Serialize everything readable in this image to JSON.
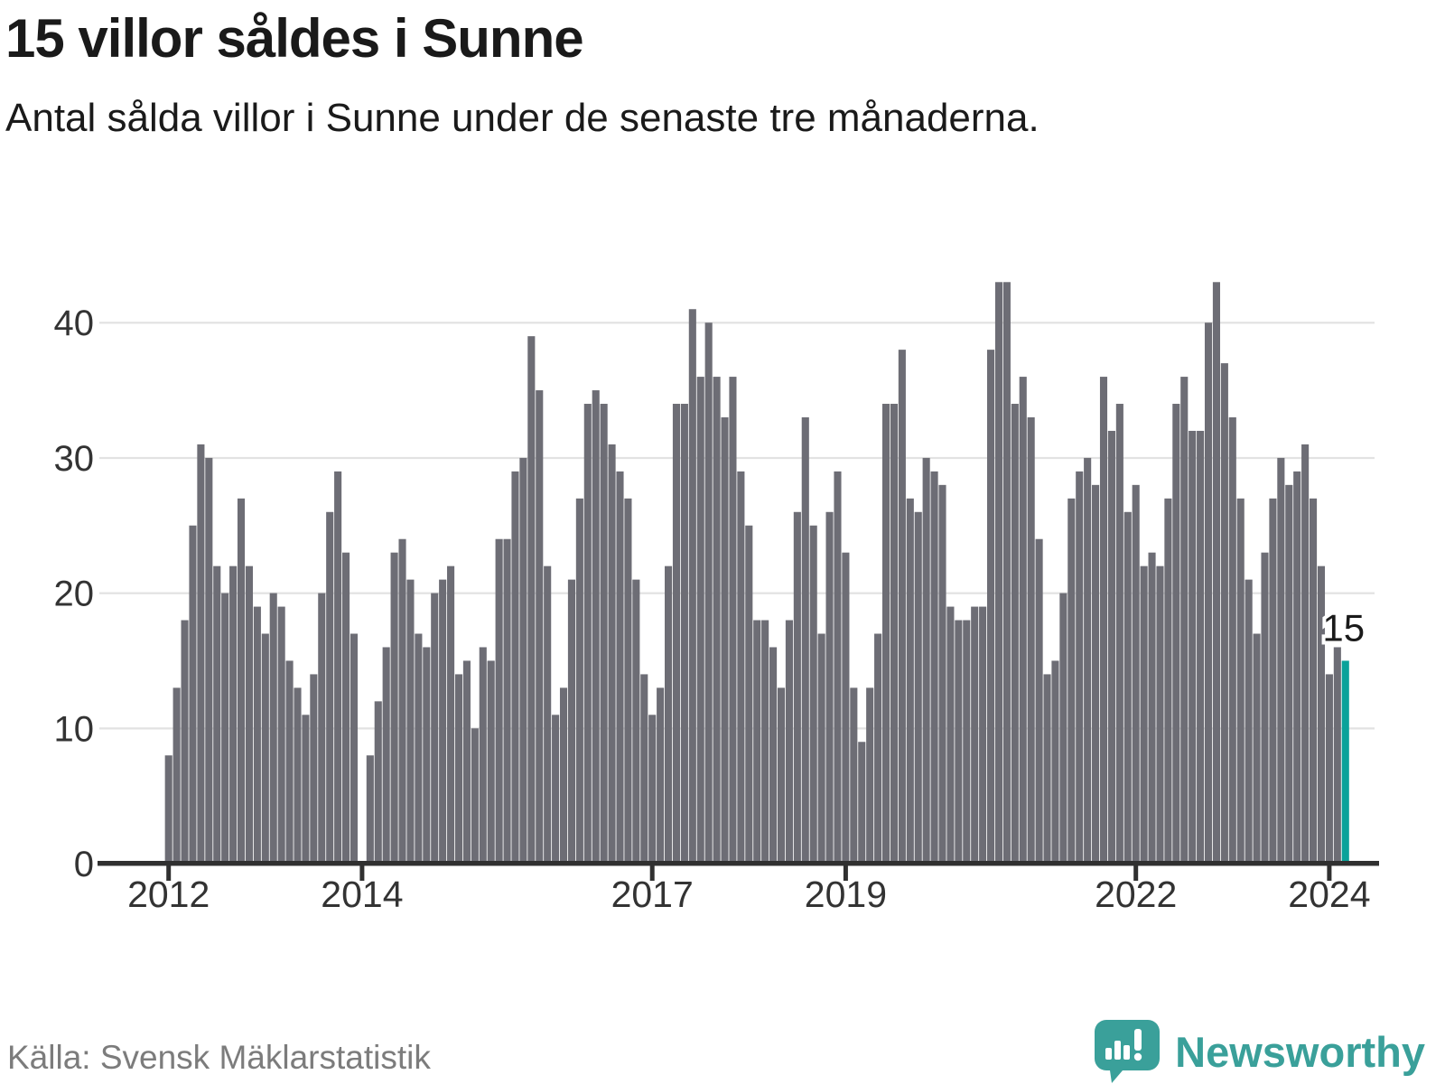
{
  "title": "15 villor såldes i Sunne",
  "subtitle": "Antal sålda villor i Sunne under de senaste tre månaderna.",
  "source": "Källa: Svensk Mäklarstatistik",
  "brand": {
    "name": "Newsworthy"
  },
  "colors": {
    "bar": "#6d6d75",
    "highlight": "#0aa29a",
    "axis": "#303030",
    "grid": "#e2e2e2",
    "title_text": "#1a1a1a",
    "tick_label": "#333333",
    "source_text": "#7c7c7c",
    "brand_teal": "#3aa09a"
  },
  "chart_data": {
    "type": "bar",
    "title": "15 villor såldes i Sunne",
    "subtitle": "Antal sålda villor i Sunne under de senaste tre månaderna.",
    "x_start_month": "2012-01",
    "x_end_month": "2024-03",
    "note": "monthly bars, rolling 3-month sales counts; null = no bar shown",
    "x_tick_years": [
      2012,
      2014,
      2017,
      2019,
      2022,
      2024
    ],
    "y_ticks": [
      0,
      10,
      20,
      30,
      40
    ],
    "ylim": [
      0,
      45
    ],
    "grid": true,
    "values": [
      8,
      13,
      18,
      25,
      31,
      30,
      22,
      20,
      22,
      27,
      22,
      19,
      17,
      20,
      19,
      15,
      13,
      11,
      14,
      20,
      26,
      29,
      23,
      17,
      null,
      8,
      12,
      16,
      23,
      24,
      21,
      17,
      16,
      20,
      21,
      22,
      14,
      15,
      10,
      16,
      15,
      24,
      24,
      29,
      30,
      39,
      35,
      22,
      11,
      13,
      21,
      27,
      34,
      35,
      34,
      31,
      29,
      27,
      21,
      14,
      11,
      13,
      22,
      34,
      34,
      41,
      36,
      40,
      36,
      33,
      36,
      29,
      25,
      18,
      18,
      16,
      13,
      18,
      26,
      33,
      25,
      17,
      26,
      29,
      23,
      13,
      9,
      13,
      17,
      34,
      34,
      38,
      27,
      26,
      30,
      29,
      28,
      19,
      18,
      18,
      19,
      19,
      38,
      43,
      43,
      34,
      36,
      33,
      24,
      14,
      15,
      20,
      27,
      29,
      30,
      28,
      36,
      32,
      34,
      26,
      28,
      22,
      23,
      22,
      27,
      34,
      36,
      32,
      32,
      40,
      43,
      37,
      33,
      27,
      21,
      17,
      23,
      27,
      30,
      28,
      29,
      31,
      27,
      22,
      14,
      16,
      15
    ],
    "highlight_index": 146,
    "highlight_value": 15,
    "highlight_label": "15",
    "legend": "none"
  }
}
